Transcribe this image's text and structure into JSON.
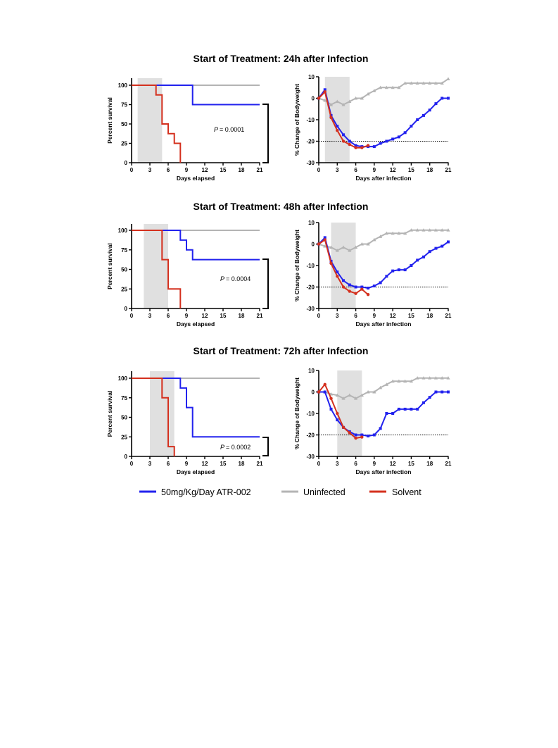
{
  "colors": {
    "treated": "#2222ee",
    "uninfected": "#b4b4b4",
    "solvent": "#d4301e",
    "shade": "#e0e0e0"
  },
  "legend": [
    {
      "key": "treated",
      "label": "50mg/Kg/Day ATR-002"
    },
    {
      "key": "uninfected",
      "label": "Uninfected"
    },
    {
      "key": "solvent",
      "label": "Solvent"
    }
  ],
  "panels": [
    {
      "title": "Start of Treatment: 24h after Infection",
      "p_label": "P",
      "p_value": "= 0.0001",
      "treatment_window": [
        1,
        5
      ]
    },
    {
      "title": "Start of Treatment: 48h after Infection",
      "p_label": "P",
      "p_value": "= 0.0004",
      "treatment_window": [
        2,
        6
      ]
    },
    {
      "title": "Start of Treatment: 72h after Infection",
      "p_label": "P",
      "p_value": "= 0.0002",
      "treatment_window": [
        3,
        7
      ]
    }
  ],
  "chart_data": [
    {
      "type": "line",
      "subtype": "kaplan-meier",
      "xlabel": "Days elapsed",
      "ylabel": "Percent survival",
      "xlim": [
        0,
        21
      ],
      "ylim": [
        0,
        100
      ],
      "xticks": [
        0,
        3,
        6,
        9,
        12,
        15,
        18,
        21
      ],
      "yticks": [
        0,
        25,
        50,
        75,
        100
      ],
      "shaded_x": [
        1,
        5
      ],
      "series": [
        {
          "key": "uninfected",
          "steps": [
            [
              0,
              100
            ],
            [
              21,
              100
            ]
          ]
        },
        {
          "key": "treated",
          "steps": [
            [
              0,
              100
            ],
            [
              10,
              100
            ],
            [
              10,
              75
            ],
            [
              21,
              75
            ]
          ]
        },
        {
          "key": "solvent",
          "steps": [
            [
              0,
              100
            ],
            [
              4,
              100
            ],
            [
              4,
              87.5
            ],
            [
              5,
              87.5
            ],
            [
              5,
              50
            ],
            [
              6,
              50
            ],
            [
              6,
              37.5
            ],
            [
              7,
              37.5
            ],
            [
              7,
              25
            ],
            [
              8,
              25
            ],
            [
              8,
              0
            ]
          ]
        }
      ]
    },
    {
      "type": "line",
      "xlabel": "Days after infection",
      "ylabel": "% Change of Bodyweight",
      "xlim": [
        0,
        21
      ],
      "ylim": [
        -30,
        10
      ],
      "xticks": [
        0,
        3,
        6,
        9,
        12,
        15,
        18,
        21
      ],
      "yticks": [
        -30,
        -20,
        -10,
        0,
        10
      ],
      "shaded_x": [
        1,
        5
      ],
      "reference_line_y": -20,
      "series": [
        {
          "key": "uninfected",
          "marker": "triangle",
          "x": [
            0,
            1,
            2,
            3,
            4,
            5,
            6,
            7,
            8,
            9,
            10,
            11,
            12,
            13,
            14,
            15,
            16,
            17,
            18,
            19,
            20,
            21
          ],
          "y": [
            0,
            -1,
            -3,
            -1.5,
            -3,
            -1.5,
            0,
            0,
            2,
            3.5,
            5,
            5,
            5,
            5,
            7,
            7,
            7,
            7,
            7,
            7,
            7,
            9
          ]
        },
        {
          "key": "treated",
          "marker": "square",
          "x": [
            0,
            1,
            2,
            3,
            4,
            5,
            6,
            7,
            8,
            9,
            10,
            11,
            12,
            13,
            14,
            15,
            16,
            17,
            18,
            19,
            20,
            21
          ],
          "y": [
            0,
            4,
            -8,
            -13,
            -17,
            -20,
            -22,
            -22.5,
            -22.5,
            -22.5,
            -21,
            -20,
            -19,
            -18,
            -16,
            -13,
            -10,
            -8,
            -5.5,
            -2.5,
            0,
            0
          ]
        },
        {
          "key": "solvent",
          "marker": "circle",
          "x": [
            0,
            1,
            2,
            3,
            4,
            5,
            6,
            7,
            8
          ],
          "y": [
            0,
            3,
            -9,
            -15,
            -20,
            -21.5,
            -23,
            -23,
            -22
          ]
        }
      ]
    },
    {
      "type": "line",
      "subtype": "kaplan-meier",
      "xlabel": "Days elapsed",
      "ylabel": "Percent survival",
      "xlim": [
        0,
        21
      ],
      "ylim": [
        0,
        100
      ],
      "xticks": [
        0,
        3,
        6,
        9,
        12,
        15,
        18,
        21
      ],
      "yticks": [
        0,
        25,
        50,
        75,
        100
      ],
      "shaded_x": [
        2,
        6
      ],
      "series": [
        {
          "key": "uninfected",
          "steps": [
            [
              0,
              100
            ],
            [
              21,
              100
            ]
          ]
        },
        {
          "key": "treated",
          "steps": [
            [
              0,
              100
            ],
            [
              8,
              100
            ],
            [
              8,
              87.5
            ],
            [
              9,
              87.5
            ],
            [
              9,
              75
            ],
            [
              10,
              75
            ],
            [
              10,
              62.5
            ],
            [
              21,
              62.5
            ]
          ]
        },
        {
          "key": "solvent",
          "steps": [
            [
              0,
              100
            ],
            [
              5,
              100
            ],
            [
              5,
              62.5
            ],
            [
              6,
              62.5
            ],
            [
              6,
              25
            ],
            [
              8,
              25
            ],
            [
              8,
              0
            ]
          ]
        }
      ]
    },
    {
      "type": "line",
      "xlabel": "Days after infection",
      "ylabel": "% Change of Bodyweight",
      "xlim": [
        0,
        21
      ],
      "ylim": [
        -30,
        10
      ],
      "xticks": [
        0,
        3,
        6,
        9,
        12,
        15,
        18,
        21
      ],
      "yticks": [
        -30,
        -20,
        -10,
        0,
        10
      ],
      "shaded_x": [
        2,
        6
      ],
      "reference_line_y": -20,
      "series": [
        {
          "key": "uninfected",
          "marker": "triangle",
          "x": [
            0,
            1,
            2,
            3,
            4,
            5,
            6,
            7,
            8,
            9,
            10,
            11,
            12,
            13,
            14,
            15,
            16,
            17,
            18,
            19,
            20,
            21
          ],
          "y": [
            0,
            -1,
            -1.5,
            -3,
            -1.5,
            -3,
            -1.5,
            0,
            0,
            2,
            3.5,
            5,
            5,
            5,
            5,
            6.5,
            6.5,
            6.5,
            6.5,
            6.5,
            6.5,
            6.5
          ]
        },
        {
          "key": "treated",
          "marker": "square",
          "x": [
            0,
            1,
            2,
            3,
            4,
            5,
            6,
            7,
            8,
            9,
            10,
            11,
            12,
            13,
            14,
            15,
            16,
            17,
            18,
            19,
            20,
            21
          ],
          "y": [
            0,
            3,
            -8,
            -13,
            -17,
            -19,
            -20,
            -20,
            -20.5,
            -19.5,
            -18,
            -15,
            -12.5,
            -12,
            -12,
            -10,
            -7.5,
            -6,
            -3.5,
            -2,
            -1,
            1
          ]
        },
        {
          "key": "solvent",
          "marker": "circle",
          "x": [
            0,
            1,
            2,
            3,
            4,
            5,
            6,
            7,
            8
          ],
          "y": [
            0,
            2,
            -9,
            -15,
            -20,
            -22,
            -23,
            -21,
            -23.5
          ]
        }
      ]
    },
    {
      "type": "line",
      "subtype": "kaplan-meier",
      "xlabel": "Days elapsed",
      "ylabel": "Percent survival",
      "xlim": [
        0,
        21
      ],
      "ylim": [
        0,
        100
      ],
      "xticks": [
        0,
        3,
        6,
        9,
        12,
        15,
        18,
        21
      ],
      "yticks": [
        0,
        25,
        50,
        75,
        100
      ],
      "shaded_x": [
        3,
        7
      ],
      "series": [
        {
          "key": "uninfected",
          "steps": [
            [
              0,
              100
            ],
            [
              21,
              100
            ]
          ]
        },
        {
          "key": "treated",
          "steps": [
            [
              0,
              100
            ],
            [
              8,
              100
            ],
            [
              8,
              87.5
            ],
            [
              9,
              87.5
            ],
            [
              9,
              62.5
            ],
            [
              10,
              62.5
            ],
            [
              10,
              25
            ],
            [
              21,
              25
            ]
          ]
        },
        {
          "key": "solvent",
          "steps": [
            [
              0,
              100
            ],
            [
              5,
              100
            ],
            [
              5,
              75
            ],
            [
              6,
              75
            ],
            [
              6,
              12.5
            ],
            [
              7,
              12.5
            ],
            [
              7,
              0
            ]
          ]
        }
      ]
    },
    {
      "type": "line",
      "xlabel": "Days after infection",
      "ylabel": "% Change of Bodyweight",
      "xlim": [
        0,
        21
      ],
      "ylim": [
        -30,
        10
      ],
      "xticks": [
        0,
        3,
        6,
        9,
        12,
        15,
        18,
        21
      ],
      "yticks": [
        -30,
        -20,
        -10,
        0,
        10
      ],
      "shaded_x": [
        3,
        7
      ],
      "reference_line_y": -20,
      "series": [
        {
          "key": "uninfected",
          "marker": "triangle",
          "x": [
            0,
            1,
            2,
            3,
            4,
            5,
            6,
            7,
            8,
            9,
            10,
            11,
            12,
            13,
            14,
            15,
            16,
            17,
            18,
            19,
            20,
            21
          ],
          "y": [
            0,
            0,
            -1,
            -1.5,
            -3,
            -1.5,
            -3,
            -1.5,
            0,
            0,
            2,
            3.5,
            5,
            5,
            5,
            5,
            6.5,
            6.5,
            6.5,
            6.5,
            6.5,
            6.5
          ]
        },
        {
          "key": "treated",
          "marker": "square",
          "x": [
            0,
            1,
            2,
            3,
            4,
            5,
            6,
            7,
            8,
            9,
            10,
            11,
            12,
            13,
            14,
            15,
            16,
            17,
            18,
            19,
            20,
            21
          ],
          "y": [
            0,
            0,
            -8,
            -13,
            -16.5,
            -18.5,
            -20,
            -20,
            -20.5,
            -20,
            -17,
            -10,
            -10,
            -8,
            -8,
            -8,
            -8,
            -5,
            -2.5,
            0,
            0,
            0
          ]
        },
        {
          "key": "solvent",
          "marker": "circle",
          "x": [
            0,
            1,
            2,
            3,
            4,
            5,
            6,
            7
          ],
          "y": [
            0,
            3.5,
            -3,
            -10,
            -16.5,
            -19,
            -21.5,
            -21
          ]
        }
      ]
    }
  ]
}
